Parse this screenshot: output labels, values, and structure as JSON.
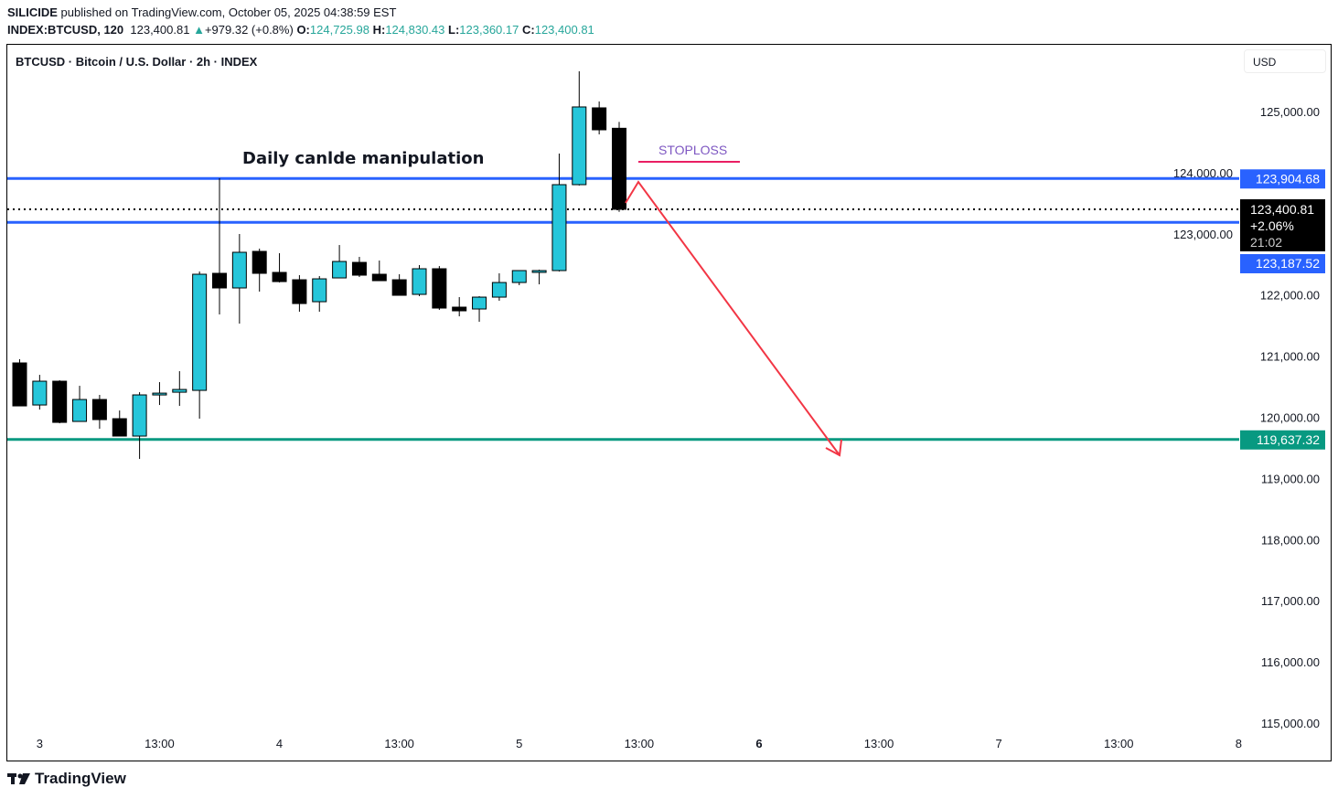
{
  "header": {
    "author": "SILICIDE",
    "published": "published on TradingView.com, October 05, 2025 04:38:59 EST",
    "symbol": "INDEX:BTCUSD, 120",
    "last": "123,400.81",
    "change": "+979.32 (+0.8%)",
    "o_label": "O:",
    "o": "124,725.98",
    "h_label": "H:",
    "h": "124,830.43",
    "l_label": "L:",
    "l": "123,360.17",
    "c_label": "C:",
    "c": "123,400.81"
  },
  "chart_title": "BTCUSD · Bitcoin / U.S. Dollar · 2h · INDEX",
  "currency": "USD",
  "footer": {
    "brand": "TradingView"
  },
  "colors": {
    "bull": "#26c6da",
    "bear": "#000000",
    "level_blue": "#2962ff",
    "level_green": "#089981",
    "arrow": "#f23645",
    "stoploss_text": "#7e57c2",
    "stoploss_line": "#e91e63"
  },
  "chart_data": {
    "type": "candlestick",
    "interval": "2h",
    "ylim": [
      115000,
      126500
    ],
    "y_ticks": [
      125000,
      124000,
      123000,
      122000,
      121000,
      120000,
      119000,
      118000,
      117000,
      116000,
      115000
    ],
    "y_tick_labels": [
      "125,000.00",
      "124,000.00",
      "123,000.00",
      "122,000.00",
      "121,000.00",
      "120,000.00",
      "119,000.00",
      "118,000.00",
      "117,000.00",
      "116,000.00",
      "115,000.00"
    ],
    "x_tick_labels": [
      "3",
      "13:00",
      "4",
      "13:00",
      "5",
      "13:00",
      "6",
      "13:00",
      "7",
      "13:00",
      "8"
    ],
    "candles_ohlc": [
      [
        120889,
        120949,
        120186,
        120186
      ],
      [
        120201,
        120694,
        120126,
        120590
      ],
      [
        120590,
        120605,
        119902,
        119917
      ],
      [
        119932,
        120515,
        119932,
        120291
      ],
      [
        120291,
        120366,
        119813,
        119962
      ],
      [
        119977,
        120111,
        119693,
        119693
      ],
      [
        119693,
        120410,
        119319,
        120366
      ],
      [
        120366,
        120575,
        120201,
        120395
      ],
      [
        120410,
        120754,
        120186,
        120455
      ],
      [
        120440,
        122384,
        119977,
        122339
      ],
      [
        122354,
        123909,
        121681,
        122115
      ],
      [
        122115,
        122997,
        121532,
        122698
      ],
      [
        122713,
        122758,
        122055,
        122354
      ],
      [
        122369,
        122683,
        122204,
        122219
      ],
      [
        122249,
        122324,
        121726,
        121860
      ],
      [
        121890,
        122309,
        121726,
        122264
      ],
      [
        122279,
        122817,
        122279,
        122548
      ],
      [
        122533,
        122623,
        122294,
        122324
      ],
      [
        122339,
        122563,
        122234,
        122234
      ],
      [
        122249,
        122339,
        121995,
        121995
      ],
      [
        122010,
        122488,
        121980,
        122429
      ],
      [
        122429,
        122473,
        121756,
        121786
      ],
      [
        121801,
        121965,
        121651,
        121741
      ],
      [
        121771,
        121980,
        121562,
        121965
      ],
      [
        121965,
        122354,
        121905,
        122204
      ],
      [
        122204,
        122399,
        122160,
        122399
      ],
      [
        122399,
        122414,
        122174,
        122399
      ],
      [
        122399,
        124312,
        122384,
        123804
      ],
      [
        123804,
        125658,
        123790,
        125075
      ],
      [
        125060,
        125164,
        124626,
        124701
      ],
      [
        124726,
        124830,
        123360,
        123401
      ]
    ],
    "levels": [
      {
        "price": 123904.68,
        "label": "123,904.68",
        "color": "#2962ff"
      },
      {
        "price": 123187.52,
        "label": "123,187.52",
        "color": "#2962ff"
      },
      {
        "price": 119637.32,
        "label": "119,637.32",
        "color": "#089981"
      }
    ],
    "current": {
      "price": 123400.81,
      "label": "123,400.81",
      "change": "+2.06%",
      "countdown": "21:02"
    },
    "annotations": {
      "manipulation": "Daily canlde manipulation",
      "stoploss": "STOPLOSS"
    }
  }
}
